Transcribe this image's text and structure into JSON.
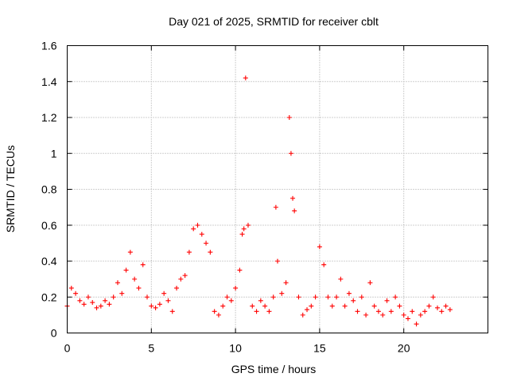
{
  "chart_data": {
    "type": "scatter",
    "title": "Day 021 of 2025, SRMTID for receiver cblt",
    "xlabel": "GPS time / hours",
    "ylabel": "SRMTID / TECUs",
    "xlim": [
      0,
      25
    ],
    "ylim": [
      0,
      1.6
    ],
    "xticks": [
      0,
      5,
      10,
      15,
      20
    ],
    "xtick_labels": [
      "0",
      "5",
      "10",
      "15",
      "20"
    ],
    "yticks": [
      0,
      0.2,
      0.4,
      0.6,
      0.8,
      1,
      1.2,
      1.4,
      1.6
    ],
    "ytick_labels": [
      "0",
      "0.2",
      "0.4",
      "0.6",
      "0.8",
      "1",
      "1.2",
      "1.4",
      "1.6"
    ],
    "grid": true,
    "marker": "plus",
    "color": "#ff0000",
    "series": [
      {
        "name": "cblt",
        "x": [
          0.0,
          0.25,
          0.5,
          0.75,
          1.0,
          1.25,
          1.5,
          1.75,
          2.0,
          2.25,
          2.5,
          2.75,
          3.0,
          3.25,
          3.5,
          3.75,
          4.0,
          4.25,
          4.5,
          4.75,
          5.0,
          5.25,
          5.5,
          5.75,
          6.0,
          6.25,
          6.5,
          6.75,
          7.0,
          7.25,
          7.5,
          7.75,
          8.0,
          8.25,
          8.5,
          8.75,
          9.0,
          9.25,
          9.5,
          9.75,
          10.0,
          10.25,
          10.4,
          10.5,
          10.6,
          10.75,
          11.0,
          11.25,
          11.5,
          11.75,
          12.0,
          12.25,
          12.4,
          12.5,
          12.75,
          13.0,
          13.2,
          13.3,
          13.4,
          13.5,
          13.75,
          14.0,
          14.25,
          14.5,
          14.75,
          15.0,
          15.25,
          15.5,
          15.75,
          16.0,
          16.25,
          16.5,
          16.75,
          17.0,
          17.25,
          17.5,
          17.75,
          18.0,
          18.25,
          18.5,
          18.75,
          19.0,
          19.25,
          19.5,
          19.75,
          20.0,
          20.25,
          20.5,
          20.75,
          21.0,
          21.25,
          21.5,
          21.75,
          22.0,
          22.25,
          22.5,
          22.75
        ],
        "y": [
          0.15,
          0.25,
          0.22,
          0.18,
          0.16,
          0.2,
          0.17,
          0.14,
          0.15,
          0.18,
          0.16,
          0.2,
          0.28,
          0.22,
          0.35,
          0.45,
          0.3,
          0.25,
          0.38,
          0.2,
          0.15,
          0.14,
          0.16,
          0.22,
          0.18,
          0.12,
          0.25,
          0.3,
          0.32,
          0.45,
          0.58,
          0.6,
          0.55,
          0.5,
          0.45,
          0.12,
          0.1,
          0.15,
          0.2,
          0.18,
          0.25,
          0.35,
          0.55,
          0.58,
          1.42,
          0.6,
          0.15,
          0.12,
          0.18,
          0.15,
          0.12,
          0.2,
          0.7,
          0.4,
          0.22,
          0.28,
          1.2,
          1.0,
          0.75,
          0.68,
          0.2,
          0.1,
          0.13,
          0.15,
          0.2,
          0.48,
          0.38,
          0.2,
          0.15,
          0.2,
          0.3,
          0.15,
          0.22,
          0.18,
          0.12,
          0.2,
          0.1,
          0.28,
          0.15,
          0.12,
          0.1,
          0.18,
          0.12,
          0.2,
          0.15,
          0.1,
          0.08,
          0.12,
          0.05,
          0.1,
          0.12,
          0.15,
          0.2,
          0.14,
          0.12,
          0.15,
          0.13
        ]
      }
    ]
  }
}
